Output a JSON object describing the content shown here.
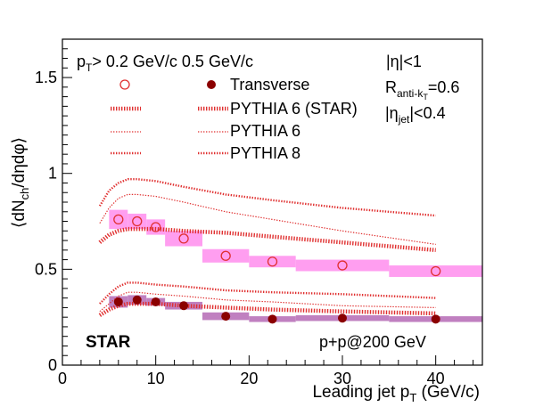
{
  "chart_data": {
    "type": "scatter",
    "xlabel": "Leading jet p",
    "xlabel_sub": "T",
    "xlabel_unit": " (GeV/c)",
    "ylabel": "⟨dN",
    "ylabel_sub": "ch",
    "ylabel_tail": "/dηdφ⟩",
    "xlim": [
      0,
      45
    ],
    "ylim": [
      0,
      1.7
    ],
    "x_ticks": [
      0,
      10,
      20,
      30,
      40
    ],
    "y_ticks": [
      0,
      0.5,
      1,
      1.5
    ],
    "x_tick_labels": [
      "0",
      "10",
      "20",
      "30",
      "40"
    ],
    "y_tick_labels": [
      "0",
      "0.5",
      "1",
      "1.5"
    ],
    "annotations": {
      "cut": "p",
      "cut_sub": "T",
      "cut_tail": "> 0.2 GeV/c 0.5 GeV/c",
      "eta": "|η|<1",
      "radius": "R",
      "radius_sub": "anti-k",
      "radius_subsub": "T",
      "radius_tail": "=0.6",
      "jet_eta": "|η",
      "jet_eta_sub": "jet",
      "jet_eta_tail": "|<0.4",
      "star": "STAR",
      "system": "p+p@200 GeV"
    },
    "legend": {
      "placement": "top-left",
      "entries": [
        "Transverse",
        "PYTHIA 6 (STAR)",
        "PYTHIA 6",
        "PYTHIA 8"
      ]
    },
    "series": [
      {
        "name": "Transverse",
        "marker": "open-circle",
        "x": [
          6,
          8,
          10,
          13,
          17.5,
          22.5,
          30,
          40
        ],
        "values": [
          0.76,
          0.75,
          0.72,
          0.66,
          0.57,
          0.54,
          0.52,
          0.49
        ],
        "syst_x": [
          [
            5,
            7
          ],
          [
            7,
            9
          ],
          [
            9,
            11
          ],
          [
            11,
            15
          ],
          [
            15,
            20
          ],
          [
            20,
            25
          ],
          [
            25,
            35
          ],
          [
            35,
            45
          ]
        ],
        "syst": [
          0.05,
          0.04,
          0.04,
          0.04,
          0.035,
          0.03,
          0.03,
          0.03
        ],
        "color": "#e03030",
        "band_color": "#ff9ef0"
      },
      {
        "name": "",
        "marker": "filled-circle",
        "x": [
          6,
          8,
          10,
          13,
          17.5,
          22.5,
          30,
          40
        ],
        "values": [
          0.33,
          0.34,
          0.33,
          0.31,
          0.255,
          0.24,
          0.245,
          0.24
        ],
        "syst_x": [
          [
            5,
            7
          ],
          [
            7,
            9
          ],
          [
            9,
            11
          ],
          [
            11,
            15
          ],
          [
            15,
            20
          ],
          [
            20,
            25
          ],
          [
            25,
            35
          ],
          [
            35,
            45
          ]
        ],
        "syst": [
          0.03,
          0.025,
          0.02,
          0.02,
          0.02,
          0.015,
          0.015,
          0.015
        ],
        "color": "#8b0000",
        "band_color": "#c080c0"
      }
    ],
    "models": [
      {
        "name": "PYTHIA 6 (STAR)",
        "style": "thick-dotted",
        "x": [
          4,
          5,
          6,
          7,
          8,
          10,
          13,
          17.5,
          22.5,
          30,
          40
        ],
        "upper": [
          0.64,
          0.68,
          0.7,
          0.71,
          0.71,
          0.71,
          0.7,
          0.69,
          0.67,
          0.64,
          0.6
        ],
        "lower": [
          0.26,
          0.29,
          0.31,
          0.32,
          0.32,
          0.32,
          0.31,
          0.3,
          0.29,
          0.28,
          0.27
        ]
      },
      {
        "name": "PYTHIA 6",
        "style": "thin-dotted",
        "x": [
          4,
          5,
          6,
          7,
          8,
          10,
          13,
          17.5,
          22.5,
          30,
          40
        ],
        "upper": [
          0.74,
          0.82,
          0.87,
          0.89,
          0.89,
          0.88,
          0.85,
          0.8,
          0.76,
          0.7,
          0.63
        ],
        "lower": [
          0.28,
          0.32,
          0.36,
          0.38,
          0.38,
          0.37,
          0.36,
          0.34,
          0.33,
          0.31,
          0.3
        ]
      },
      {
        "name": "PYTHIA 8",
        "style": "medium-dotted",
        "x": [
          4,
          5,
          6,
          7,
          8,
          10,
          13,
          17.5,
          22.5,
          30,
          40
        ],
        "upper": [
          0.83,
          0.91,
          0.95,
          0.97,
          0.97,
          0.96,
          0.93,
          0.89,
          0.86,
          0.82,
          0.78
        ],
        "lower": [
          0.32,
          0.37,
          0.41,
          0.43,
          0.43,
          0.42,
          0.41,
          0.39,
          0.38,
          0.37,
          0.35
        ]
      }
    ]
  }
}
